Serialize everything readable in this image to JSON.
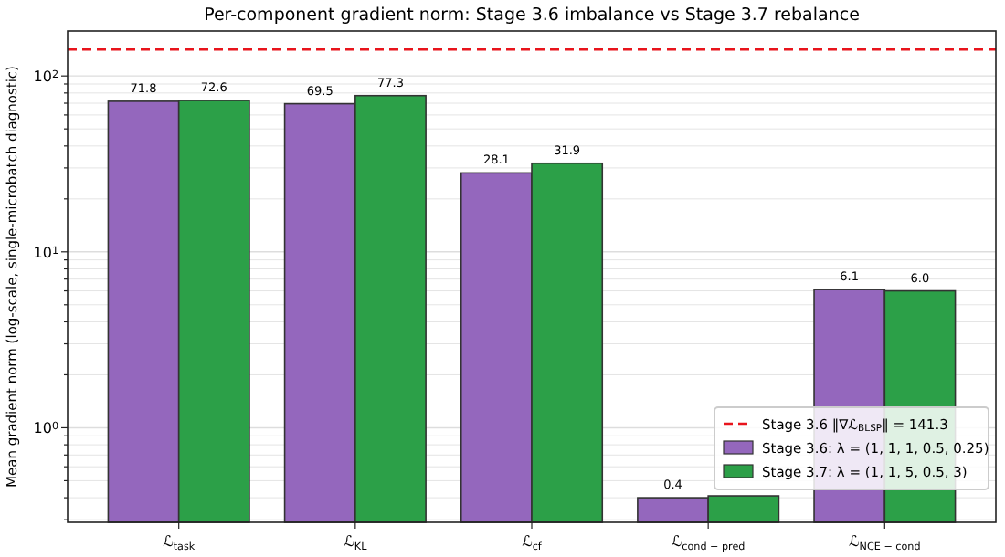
{
  "chart_data": {
    "type": "bar",
    "title": "Per-component gradient norm: Stage 3.6 imbalance vs Stage 3.7 rebalance",
    "ylabel": "Mean gradient norm (log-scale, single-microbatch diagnostic)",
    "categories": [
      "ℒ$_{task}$",
      "ℒ$_{KL}$",
      "ℒ$_{cf}$",
      "ℒ$_{cond − pred}$",
      "ℒ$_{NCE − cond}$"
    ],
    "series": [
      {
        "name": "Stage 3.6: λ = (1, 1, 1, 0.5, 0.25)",
        "color": "#9467bd",
        "values": [
          71.8,
          69.5,
          28.1,
          0.4,
          6.1
        ],
        "value_labels": [
          "71.8",
          "69.5",
          "28.1",
          "0.4",
          "6.1"
        ]
      },
      {
        "name": "Stage 3.7: λ = (1, 1, 5, 0.5, 3)",
        "color": "#2ca048",
        "values": [
          72.6,
          77.3,
          31.9,
          0.41,
          6.0
        ],
        "value_labels": [
          "72.6",
          "77.3",
          "31.9",
          null,
          "6.0"
        ]
      }
    ],
    "log": true,
    "ylim": [
      0.29,
      180
    ],
    "yticks": [
      {
        "value": 0.3,
        "label": null
      },
      {
        "value": 0.4,
        "label": null
      },
      {
        "value": 0.5,
        "label": null
      },
      {
        "value": 0.6,
        "label": null
      },
      {
        "value": 0.7,
        "label": null
      },
      {
        "value": 0.8,
        "label": null
      },
      {
        "value": 0.9,
        "label": null
      },
      {
        "value": 1,
        "label": "10$^{0}$"
      },
      {
        "value": 2,
        "label": null
      },
      {
        "value": 3,
        "label": null
      },
      {
        "value": 4,
        "label": null
      },
      {
        "value": 5,
        "label": null
      },
      {
        "value": 6,
        "label": null
      },
      {
        "value": 7,
        "label": null
      },
      {
        "value": 8,
        "label": null
      },
      {
        "value": 9,
        "label": null
      },
      {
        "value": 10,
        "label": "10$^{1}$"
      },
      {
        "value": 20,
        "label": null
      },
      {
        "value": 30,
        "label": null
      },
      {
        "value": 40,
        "label": null
      },
      {
        "value": 50,
        "label": null
      },
      {
        "value": 60,
        "label": null
      },
      {
        "value": 70,
        "label": null
      },
      {
        "value": 80,
        "label": null
      },
      {
        "value": 90,
        "label": null
      },
      {
        "value": 100,
        "label": "10$^{2}$"
      }
    ],
    "ref_lines": [
      {
        "axis": "y",
        "value": 141.3,
        "label": "Stage 3.6 ‖∇ℒ$_{BLSP}$‖ = 141.3",
        "color": "#e8141c",
        "line_style": "dashed"
      }
    ],
    "grid": "y",
    "legend": "bottom right"
  }
}
